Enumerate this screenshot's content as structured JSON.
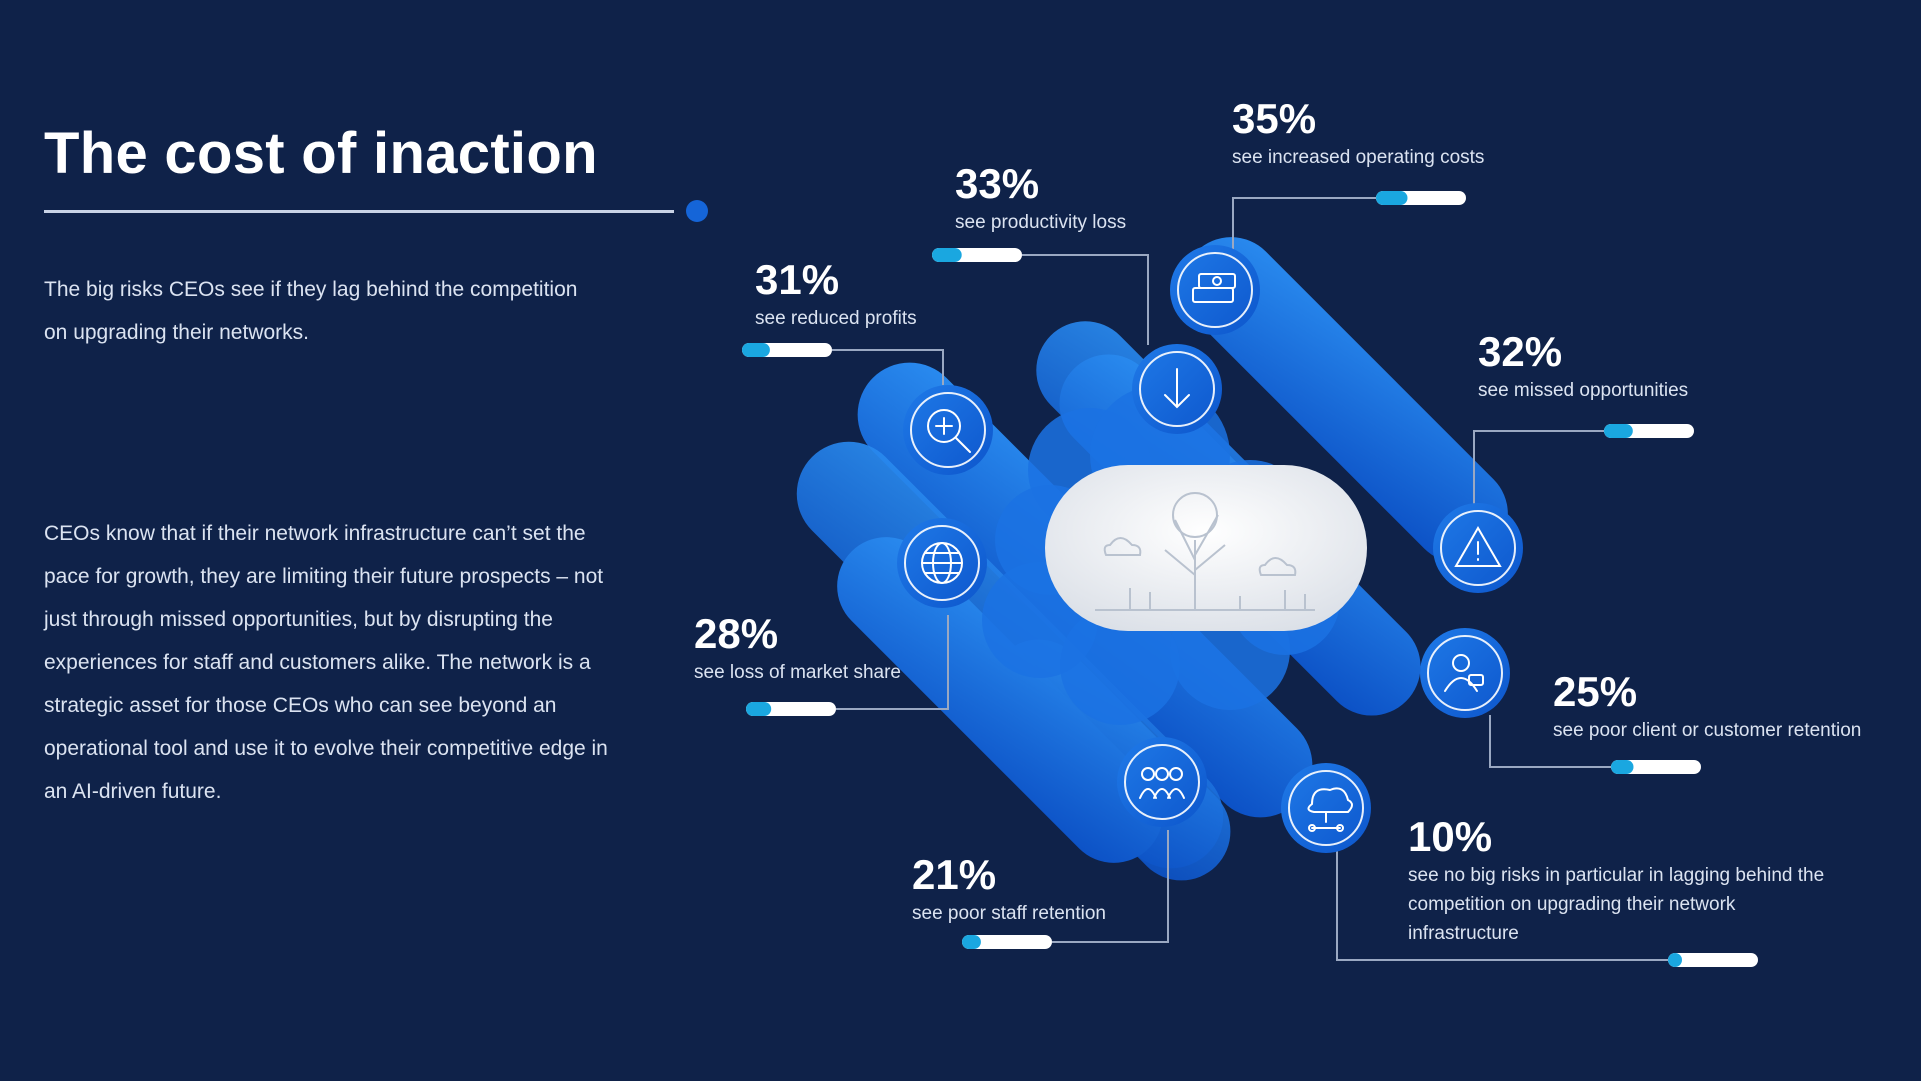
{
  "title": "The cost of inaction",
  "intro": "The big risks CEOs see if they lag behind the competition on upgrading their networks.",
  "body": "CEOs know that if their network infrastructure can’t set the pace for growth, they are limiting their future prospects – not just through missed opportunities, but by disrupting the experiences for staff and customers alike. The network is a strategic asset for those CEOs who can see beyond an operational tool and use it to evolve their competitive edge in an AI-driven future.",
  "colors": {
    "background": "#0f2249",
    "accent_blue": "#1565d8",
    "bar_fill": "#1aa7e0",
    "bar_track": "#ffffff"
  },
  "stats": [
    {
      "value": "35%",
      "label": "see increased operating costs",
      "icon": "money-stack-icon"
    },
    {
      "value": "33%",
      "label": "see productivity loss",
      "icon": "down-arrow-icon"
    },
    {
      "value": "31%",
      "label": "see reduced profits",
      "icon": "magnifier-profit-icon"
    },
    {
      "value": "32%",
      "label": "see missed opportunities",
      "icon": "warning-icon"
    },
    {
      "value": "28%",
      "label": "see loss of market share",
      "icon": "globe-icon"
    },
    {
      "value": "25%",
      "label": "see poor client or customer retention",
      "icon": "customer-icon"
    },
    {
      "value": "21%",
      "label": "see poor staff retention",
      "icon": "team-icon"
    },
    {
      "value": "10%",
      "label": "see no big risks in particular in lagging behind the competition on upgrading their network infrastructure",
      "icon": "network-icon"
    }
  ]
}
